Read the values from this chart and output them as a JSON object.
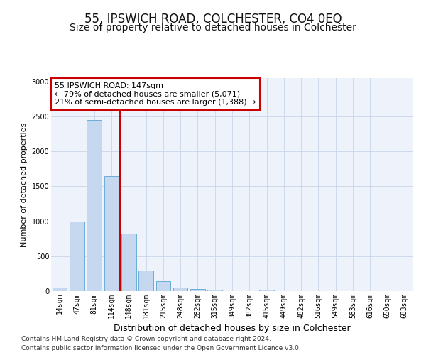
{
  "title": "55, IPSWICH ROAD, COLCHESTER, CO4 0EQ",
  "subtitle": "Size of property relative to detached houses in Colchester",
  "xlabel": "Distribution of detached houses by size in Colchester",
  "ylabel": "Number of detached properties",
  "categories": [
    "14sqm",
    "47sqm",
    "81sqm",
    "114sqm",
    "148sqm",
    "181sqm",
    "215sqm",
    "248sqm",
    "282sqm",
    "315sqm",
    "349sqm",
    "382sqm",
    "415sqm",
    "449sqm",
    "482sqm",
    "516sqm",
    "549sqm",
    "583sqm",
    "616sqm",
    "650sqm",
    "683sqm"
  ],
  "values": [
    50,
    1000,
    2450,
    1650,
    820,
    290,
    145,
    50,
    35,
    20,
    5,
    5,
    25,
    0,
    0,
    0,
    0,
    0,
    0,
    0,
    0
  ],
  "bar_color": "#c5d8ef",
  "bar_edge_color": "#6aaed6",
  "vline_color": "#cc0000",
  "vline_x": 3.5,
  "annotation_text": "55 IPSWICH ROAD: 147sqm\n← 79% of detached houses are smaller (5,071)\n21% of semi-detached houses are larger (1,388) →",
  "annotation_box_color": "#ffffff",
  "annotation_box_edge_color": "#cc0000",
  "ylim": [
    0,
    3050
  ],
  "yticks": [
    0,
    500,
    1000,
    1500,
    2000,
    2500,
    3000
  ],
  "footnote1": "Contains HM Land Registry data © Crown copyright and database right 2024.",
  "footnote2": "Contains public sector information licensed under the Open Government Licence v3.0.",
  "bg_color": "#eef3fb",
  "grid_color": "#c8d4e8",
  "title_fontsize": 12,
  "subtitle_fontsize": 10,
  "xlabel_fontsize": 9,
  "ylabel_fontsize": 8,
  "tick_fontsize": 7,
  "annotation_fontsize": 8,
  "footnote_fontsize": 6.5
}
